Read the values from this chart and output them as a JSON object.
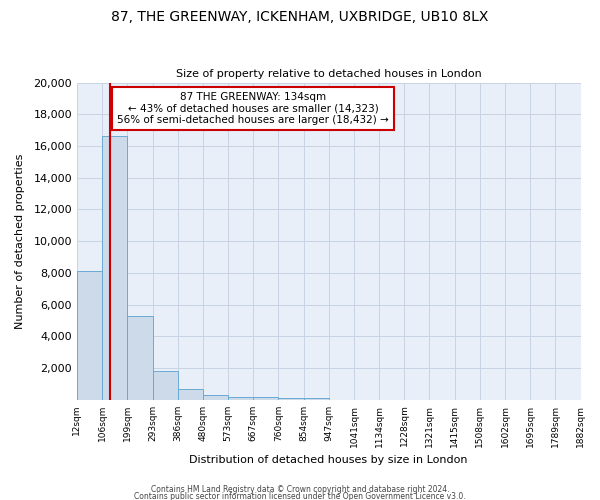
{
  "title": "87, THE GREENWAY, ICKENHAM, UXBRIDGE, UB10 8LX",
  "subtitle": "Size of property relative to detached houses in London",
  "xlabel": "Distribution of detached houses by size in London",
  "ylabel": "Number of detached properties",
  "bar_color": "#ccdaea",
  "bar_edge_color": "#6aaad4",
  "background_color": "#ffffff",
  "plot_bg_color": "#e8eff8",
  "grid_color": "#c8d4e4",
  "bin_labels": [
    "12sqm",
    "106sqm",
    "199sqm",
    "293sqm",
    "386sqm",
    "480sqm",
    "573sqm",
    "667sqm",
    "760sqm",
    "854sqm",
    "947sqm",
    "1041sqm",
    "1134sqm",
    "1228sqm",
    "1321sqm",
    "1415sqm",
    "1508sqm",
    "1602sqm",
    "1695sqm",
    "1789sqm",
    "1882sqm"
  ],
  "bin_edges": [
    12,
    106,
    199,
    293,
    386,
    480,
    573,
    667,
    760,
    854,
    947,
    1041,
    1134,
    1228,
    1321,
    1415,
    1508,
    1602,
    1695,
    1789,
    1882
  ],
  "bar_values": [
    8100,
    16600,
    5300,
    1800,
    700,
    300,
    200,
    150,
    130,
    130,
    0,
    0,
    0,
    0,
    0,
    0,
    0,
    0,
    0,
    0
  ],
  "red_line_x": 134,
  "annotation_title": "87 THE GREENWAY: 134sqm",
  "annotation_line1": "← 43% of detached houses are smaller (14,323)",
  "annotation_line2": "56% of semi-detached houses are larger (18,432) →",
  "annotation_box_color": "#ffffff",
  "annotation_box_edge": "#cc0000",
  "red_line_color": "#cc0000",
  "ylim": [
    0,
    20000
  ],
  "yticks": [
    0,
    2000,
    4000,
    6000,
    8000,
    10000,
    12000,
    14000,
    16000,
    18000,
    20000
  ],
  "footer1": "Contains HM Land Registry data © Crown copyright and database right 2024.",
  "footer2": "Contains public sector information licensed under the Open Government Licence v3.0."
}
